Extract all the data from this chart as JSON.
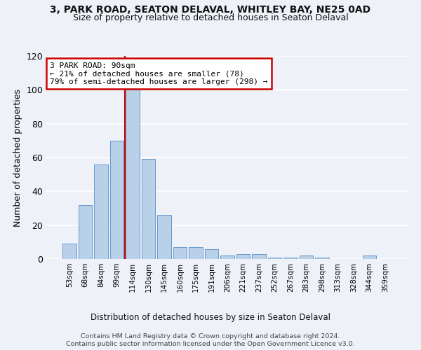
{
  "title1": "3, PARK ROAD, SEATON DELAVAL, WHITLEY BAY, NE25 0AD",
  "title2": "Size of property relative to detached houses in Seaton Delaval",
  "xlabel": "Distribution of detached houses by size in Seaton Delaval",
  "ylabel": "Number of detached properties",
  "bar_labels": [
    "53sqm",
    "68sqm",
    "84sqm",
    "99sqm",
    "114sqm",
    "130sqm",
    "145sqm",
    "160sqm",
    "175sqm",
    "191sqm",
    "206sqm",
    "221sqm",
    "237sqm",
    "252sqm",
    "267sqm",
    "283sqm",
    "298sqm",
    "313sqm",
    "328sqm",
    "344sqm",
    "359sqm"
  ],
  "bar_values": [
    9,
    32,
    56,
    70,
    101,
    59,
    26,
    7,
    7,
    6,
    2,
    3,
    3,
    1,
    1,
    2,
    1,
    0,
    0,
    2,
    0
  ],
  "bar_color": "#b8d0e8",
  "bar_edge_color": "#6699cc",
  "marker_label": "3 PARK ROAD: 90sqm",
  "annotation_line1": "← 21% of detached houses are smaller (78)",
  "annotation_line2": "79% of semi-detached houses are larger (298) →",
  "annotation_box_color": "#ffffff",
  "annotation_box_edge": "#cc0000",
  "marker_line_color": "#cc0000",
  "ylim": [
    0,
    120
  ],
  "yticks": [
    0,
    20,
    40,
    60,
    80,
    100,
    120
  ],
  "footer1": "Contains HM Land Registry data © Crown copyright and database right 2024.",
  "footer2": "Contains public sector information licensed under the Open Government Licence v3.0.",
  "bg_color": "#eef2f8",
  "grid_color": "#ffffff"
}
